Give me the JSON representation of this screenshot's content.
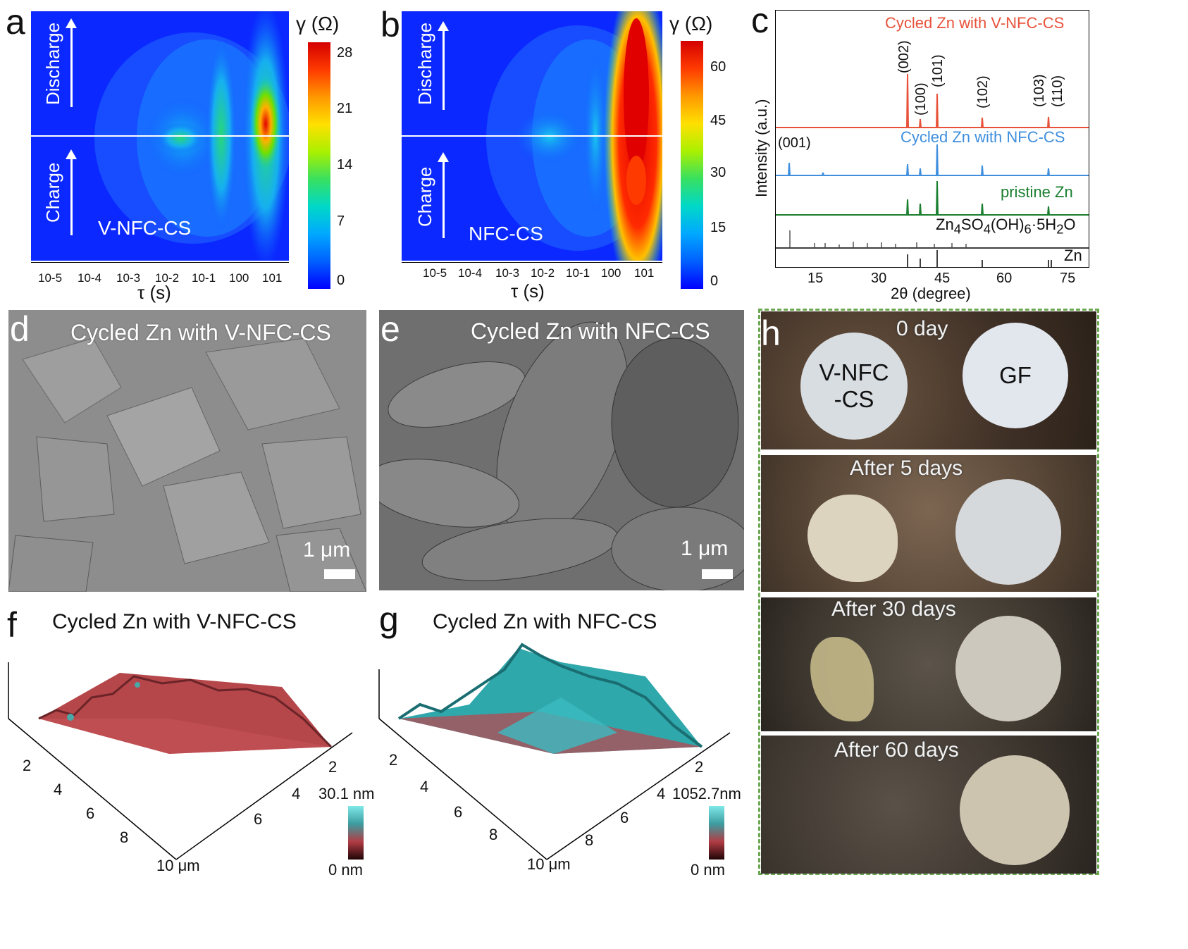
{
  "panels": {
    "a": {
      "letter": "a",
      "label": "V-NFC-CS",
      "discharge": "Discharge",
      "charge": "Charge",
      "xlabel": "τ (s)",
      "colorbar_title": "γ (Ω)",
      "colorbar_ticks": [
        "28",
        "21",
        "14",
        "7",
        "0"
      ],
      "x_ticks": [
        "10-5",
        "10-4",
        "10-3",
        "10-2",
        "10-1",
        "100",
        "101"
      ]
    },
    "b": {
      "letter": "b",
      "label": "NFC-CS",
      "discharge": "Discharge",
      "charge": "Charge",
      "xlabel": "τ (s)",
      "colorbar_title": "γ (Ω)",
      "colorbar_ticks": [
        "60",
        "45",
        "30",
        "15",
        "0"
      ],
      "x_ticks": [
        "10-5",
        "10-4",
        "10-3",
        "10-2",
        "10-1",
        "100",
        "101"
      ]
    },
    "c": {
      "letter": "c",
      "ylabel": "Intensity (a.u.)",
      "xlabel": "2θ (degree)",
      "x_ticks": [
        "15",
        "30",
        "45",
        "60",
        "75"
      ],
      "series_labels": [
        "Cycled Zn with V-NFC-CS",
        "Cycled Zn with NFC-CS",
        "pristine Zn"
      ],
      "ref_zinc_hydroxide": "Zn4SO4(OH)6·5H2O",
      "ref_zn": "Zn",
      "peaks": [
        "(002)",
        "(100)",
        "(101)",
        "(102)",
        "(103)",
        "(110)",
        "(001)"
      ]
    },
    "d": {
      "letter": "d",
      "title": "Cycled Zn  with V-NFC-CS",
      "scale": "1 μm"
    },
    "e": {
      "letter": "e",
      "title": "Cycled Zn  with NFC-CS",
      "scale": "1 μm"
    },
    "f": {
      "letter": "f",
      "title": "Cycled Zn with V-NFC-CS",
      "zmax": "30.1 nm",
      "zmin": "0 nm",
      "axis_ticks": [
        "2",
        "4",
        "6",
        "8",
        "10 μm",
        "2",
        "4",
        "6"
      ]
    },
    "g": {
      "letter": "g",
      "title": "Cycled Zn with NFC-CS",
      "zmax": "1052.7nm",
      "zmin": "0 nm",
      "axis_ticks": [
        "2",
        "4",
        "6",
        "8",
        "10 μm",
        "2",
        "4",
        "6",
        "8"
      ]
    },
    "h": {
      "letter": "h",
      "rows": [
        "0 day",
        "After 5 days",
        "After 30 days",
        "After 60 days"
      ],
      "disc_left": "V-NFC\n-CS",
      "disc_right": "GF"
    }
  },
  "colors": {
    "xrd_vnfc": "#e8523a",
    "xrd_nfc": "#3f8fde",
    "xrd_pristine": "#1a7f2e",
    "frame_h": "#6aa84f"
  },
  "chart_data": [
    {
      "type": "heatmap",
      "title": "",
      "xlabel": "τ (s)",
      "ylabel": "",
      "x_range_log10": [
        -6,
        1.5
      ],
      "colorbar_range": [
        0,
        28
      ],
      "peaks_tau_log10": [
        -2,
        -1,
        -0.3,
        0.8
      ]
    },
    {
      "type": "heatmap",
      "title": "",
      "xlabel": "τ (s)",
      "ylabel": "",
      "x_range_log10": [
        -6,
        1.5
      ],
      "colorbar_range": [
        0,
        65
      ],
      "peaks_tau_log10": [
        -1,
        -0.3,
        0.8
      ]
    },
    {
      "type": "line",
      "title": "",
      "xlabel": "2θ (degree)",
      "ylabel": "Intensity (a.u.)",
      "xlim": [
        5,
        80
      ],
      "series": [
        {
          "name": "Cycled Zn with V-NFC-CS",
          "peaks_2theta": [
            36.3,
            39.0,
            43.2,
            54.3,
            70.1,
            70.7
          ]
        },
        {
          "name": "Cycled Zn with NFC-CS",
          "peaks_2theta": [
            8.1,
            16.3,
            36.3,
            39.0,
            43.2,
            54.3,
            70.1
          ]
        },
        {
          "name": "pristine Zn",
          "peaks_2theta": [
            36.3,
            39.0,
            43.2,
            54.3,
            70.1
          ]
        }
      ]
    }
  ]
}
